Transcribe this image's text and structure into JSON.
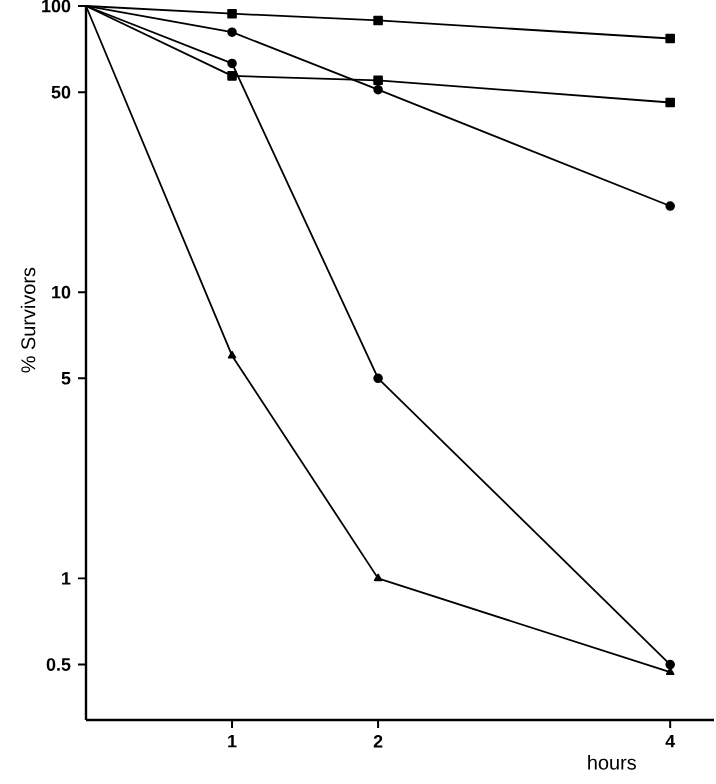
{
  "chart_data": {
    "type": "line",
    "xlabel": "hours",
    "ylabel": "% Survivors",
    "log": "y",
    "xlim": [
      0,
      4.3
    ],
    "ylim": [
      0.32,
      100
    ],
    "xticks": [
      1,
      2,
      4
    ],
    "yticks": [
      0.5,
      1,
      5,
      10,
      50,
      100
    ],
    "grid": false,
    "series": [
      {
        "color": "#000000",
        "marker": "square",
        "x": [
          0,
          1,
          2,
          4
        ],
        "values": [
          100,
          94,
          89,
          77
        ]
      },
      {
        "color": "#000000",
        "marker": "circle",
        "x": [
          0,
          1,
          2,
          4
        ],
        "values": [
          100,
          81,
          51,
          20
        ]
      },
      {
        "color": "#000000",
        "marker": "square",
        "x": [
          0,
          1,
          2,
          4
        ],
        "values": [
          100,
          57,
          55,
          46
        ]
      },
      {
        "color": "#000000",
        "marker": "circle",
        "x": [
          0,
          1,
          2,
          4
        ],
        "values": [
          100,
          63,
          5,
          0.5
        ]
      },
      {
        "color": "#000000",
        "marker": "triangle",
        "x": [
          0,
          1,
          2,
          4
        ],
        "values": [
          100,
          6,
          1,
          0.47
        ]
      }
    ]
  }
}
